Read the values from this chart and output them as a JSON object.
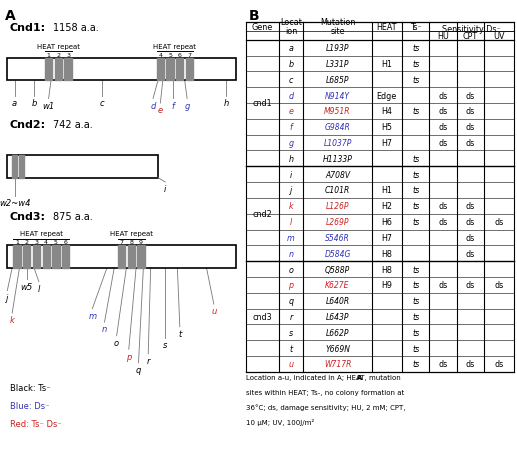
{
  "legend": [
    {
      "text": "Black: Ts⁻",
      "color": "black"
    },
    {
      "text": "Blue: Ds⁻",
      "color": "#3333bb"
    },
    {
      "text": "Red: Ts⁻ Ds⁻",
      "color": "#cc2222"
    }
  ],
  "table_rows": [
    {
      "gene": "cnd1",
      "loc": "a",
      "mut": "L193P",
      "heat": "",
      "ts": "ts",
      "hu": "",
      "cpt": "",
      "uv": "",
      "loc_color": "black",
      "mut_color": "black"
    },
    {
      "gene": "",
      "loc": "b",
      "mut": "L331P",
      "heat": "H1",
      "ts": "ts",
      "hu": "",
      "cpt": "",
      "uv": "",
      "loc_color": "black",
      "mut_color": "black"
    },
    {
      "gene": "",
      "loc": "c",
      "mut": "L685P",
      "heat": "",
      "ts": "ts",
      "hu": "",
      "cpt": "",
      "uv": "",
      "loc_color": "black",
      "mut_color": "black"
    },
    {
      "gene": "",
      "loc": "d",
      "mut": "N914Y",
      "heat": "Edge",
      "ts": "",
      "hu": "ds",
      "cpt": "ds",
      "uv": "",
      "loc_color": "#3333bb",
      "mut_color": "#3333bb"
    },
    {
      "gene": "",
      "loc": "e",
      "mut": "M951R",
      "heat": "H4",
      "ts": "ts",
      "hu": "ds",
      "cpt": "ds",
      "uv": "",
      "loc_color": "#cc2222",
      "mut_color": "#cc2222"
    },
    {
      "gene": "",
      "loc": "f",
      "mut": "G984R",
      "heat": "H5",
      "ts": "",
      "hu": "ds",
      "cpt": "ds",
      "uv": "",
      "loc_color": "#3333bb",
      "mut_color": "#3333bb"
    },
    {
      "gene": "",
      "loc": "g",
      "mut": "L1037P",
      "heat": "H7",
      "ts": "",
      "hu": "ds",
      "cpt": "ds",
      "uv": "",
      "loc_color": "#3333bb",
      "mut_color": "#3333bb"
    },
    {
      "gene": "",
      "loc": "h",
      "mut": "H1133P",
      "heat": "",
      "ts": "ts",
      "hu": "",
      "cpt": "",
      "uv": "",
      "loc_color": "black",
      "mut_color": "black"
    },
    {
      "gene": "cnd2",
      "loc": "i",
      "mut": "A708V",
      "heat": "",
      "ts": "ts",
      "hu": "",
      "cpt": "",
      "uv": "",
      "loc_color": "black",
      "mut_color": "black"
    },
    {
      "gene": "",
      "loc": "j",
      "mut": "C101R",
      "heat": "H1",
      "ts": "ts",
      "hu": "",
      "cpt": "",
      "uv": "",
      "loc_color": "black",
      "mut_color": "black"
    },
    {
      "gene": "",
      "loc": "k",
      "mut": "L126P",
      "heat": "H2",
      "ts": "ts",
      "hu": "ds",
      "cpt": "ds",
      "uv": "",
      "loc_color": "#cc2222",
      "mut_color": "#cc2222"
    },
    {
      "gene": "",
      "loc": "l",
      "mut": "L269P",
      "heat": "H6",
      "ts": "ts",
      "hu": "ds",
      "cpt": "ds",
      "uv": "ds",
      "loc_color": "#cc2222",
      "mut_color": "#cc2222"
    },
    {
      "gene": "",
      "loc": "m",
      "mut": "S546R",
      "heat": "H7",
      "ts": "",
      "hu": "",
      "cpt": "ds",
      "uv": "",
      "loc_color": "#3333bb",
      "mut_color": "#3333bb"
    },
    {
      "gene": "",
      "loc": "n",
      "mut": "D584G",
      "heat": "H8",
      "ts": "",
      "hu": "",
      "cpt": "ds",
      "uv": "",
      "loc_color": "#3333bb",
      "mut_color": "#3333bb"
    },
    {
      "gene": "cnd3",
      "loc": "o",
      "mut": "Q588P",
      "heat": "H8",
      "ts": "ts",
      "hu": "",
      "cpt": "",
      "uv": "",
      "loc_color": "black",
      "mut_color": "black"
    },
    {
      "gene": "",
      "loc": "p",
      "mut": "K627E",
      "heat": "H9",
      "ts": "ts",
      "hu": "ds",
      "cpt": "ds",
      "uv": "ds",
      "loc_color": "#cc2222",
      "mut_color": "#cc2222"
    },
    {
      "gene": "",
      "loc": "q",
      "mut": "L640R",
      "heat": "",
      "ts": "ts",
      "hu": "",
      "cpt": "",
      "uv": "",
      "loc_color": "black",
      "mut_color": "black"
    },
    {
      "gene": "",
      "loc": "r",
      "mut": "L643P",
      "heat": "",
      "ts": "ts",
      "hu": "",
      "cpt": "",
      "uv": "",
      "loc_color": "black",
      "mut_color": "black"
    },
    {
      "gene": "",
      "loc": "s",
      "mut": "L662P",
      "heat": "",
      "ts": "ts",
      "hu": "",
      "cpt": "",
      "uv": "",
      "loc_color": "black",
      "mut_color": "black"
    },
    {
      "gene": "",
      "loc": "t",
      "mut": "Y669N",
      "heat": "",
      "ts": "ts",
      "hu": "",
      "cpt": "",
      "uv": "",
      "loc_color": "black",
      "mut_color": "black"
    },
    {
      "gene": "",
      "loc": "u",
      "mut": "W717R",
      "heat": "",
      "ts": "ts",
      "hu": "ds",
      "cpt": "ds",
      "uv": "ds",
      "loc_color": "#cc2222",
      "mut_color": "#cc2222"
    }
  ]
}
